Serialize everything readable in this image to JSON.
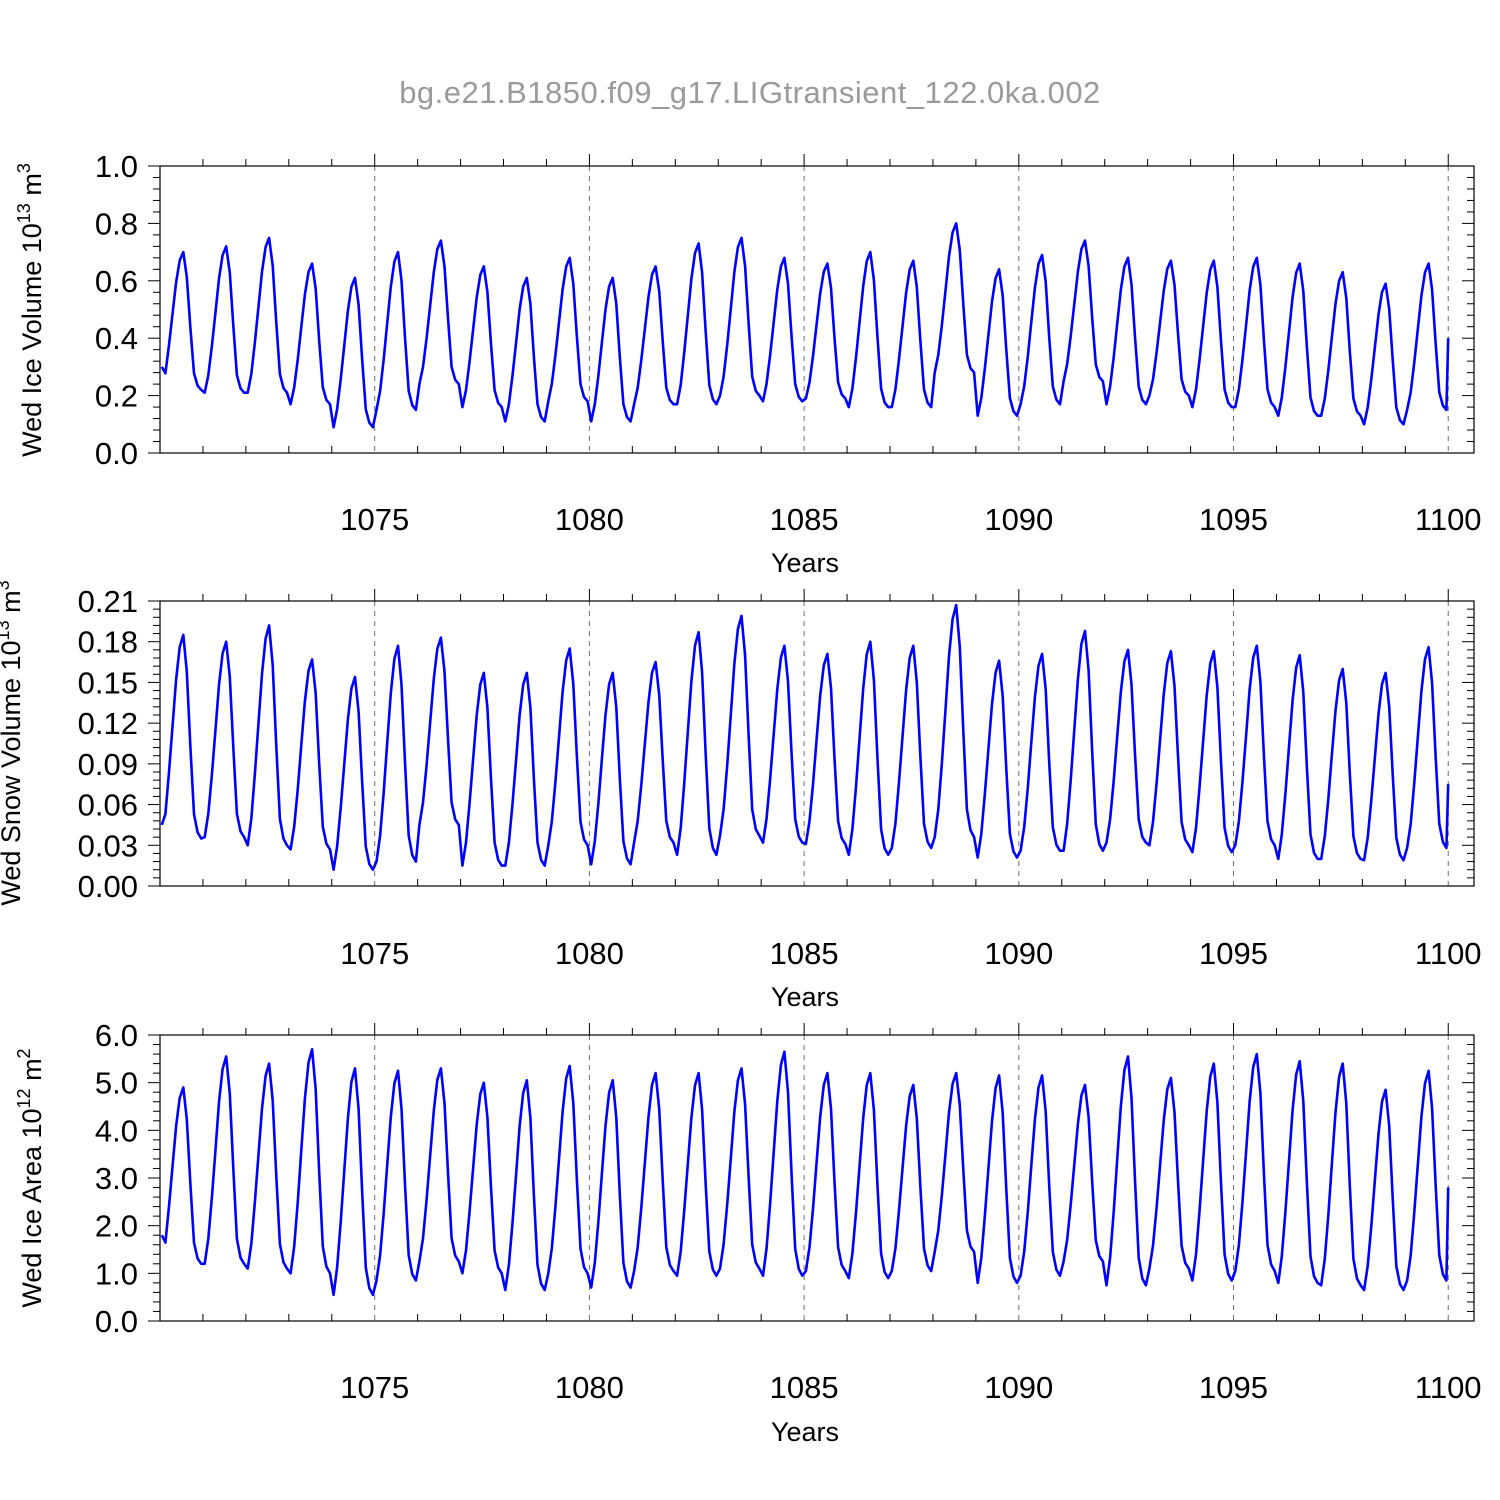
{
  "title": "bg.e21.B1850.f09_g17.LIGtransient_122.0ka.002",
  "chart_data": [
    {
      "type": "line",
      "ylabel_main": "Wed Ice Volume 10",
      "ylabel_exp": "13",
      "ylabel_unit": " m",
      "ylabel_unit_exp": "3",
      "xlabel": "Years",
      "xlim": [
        1070.0,
        1100.6
      ],
      "ylim": [
        0.0,
        1.0
      ],
      "x_ticks": [
        1075,
        1080,
        1085,
        1090,
        1095,
        1100
      ],
      "x_tick_labels": [
        "1075",
        "1080",
        "1085",
        "1090",
        "1095",
        "1100"
      ],
      "y_ticks": [
        0.0,
        0.2,
        0.4,
        0.6,
        0.8,
        1.0
      ],
      "y_tick_labels": [
        "0.0",
        "0.2",
        "0.4",
        "0.6",
        "0.8",
        "1.0"
      ],
      "y_minor_step": 0.04,
      "series": [
        {
          "name": "Wed Ice Volume",
          "color": "#0000ff",
          "cycle_mins": [
            0.22,
            0.21,
            0.21,
            0.17,
            0.09,
            0.15,
            0.24,
            0.16,
            0.11,
            0.18,
            0.11,
            0.17,
            0.17,
            0.2,
            0.18,
            0.19,
            0.16,
            0.16,
            0.28,
            0.13,
            0.17,
            0.25,
            0.17,
            0.2,
            0.16,
            0.16,
            0.13,
            0.13,
            0.1,
            0.15
          ],
          "cycle_maxs": [
            0.7,
            0.72,
            0.75,
            0.66,
            0.61,
            0.7,
            0.74,
            0.65,
            0.61,
            0.68,
            0.61,
            0.65,
            0.73,
            0.75,
            0.68,
            0.66,
            0.7,
            0.67,
            0.8,
            0.64,
            0.69,
            0.74,
            0.68,
            0.67,
            0.67,
            0.68,
            0.66,
            0.63,
            0.59,
            0.66
          ],
          "start": 0.3,
          "end": 0.4
        }
      ]
    },
    {
      "type": "line",
      "ylabel_main": "Wed Snow Volume 10",
      "ylabel_exp": "13",
      "ylabel_unit": " m",
      "ylabel_unit_exp": "3",
      "xlabel": "Years",
      "xlim": [
        1070.0,
        1100.6
      ],
      "ylim": [
        0.0,
        0.21
      ],
      "x_ticks": [
        1075,
        1080,
        1085,
        1090,
        1095,
        1100
      ],
      "x_tick_labels": [
        "1075",
        "1080",
        "1085",
        "1090",
        "1095",
        "1100"
      ],
      "y_ticks": [
        0.0,
        0.03,
        0.06,
        0.09,
        0.12,
        0.15,
        0.18,
        0.21
      ],
      "y_tick_labels": [
        "0.00",
        "0.03",
        "0.06",
        "0.09",
        "0.12",
        "0.15",
        "0.18",
        "0.21"
      ],
      "y_minor_step": 0.006,
      "series": [
        {
          "name": "Wed Snow Volume",
          "color": "#0000ff",
          "cycle_mins": [
            0.035,
            0.036,
            0.03,
            0.027,
            0.012,
            0.018,
            0.045,
            0.015,
            0.015,
            0.03,
            0.016,
            0.032,
            0.023,
            0.037,
            0.032,
            0.031,
            0.023,
            0.028,
            0.036,
            0.021,
            0.026,
            0.026,
            0.032,
            0.03,
            0.025,
            0.03,
            0.02,
            0.02,
            0.019,
            0.028
          ],
          "cycle_maxs": [
            0.185,
            0.18,
            0.192,
            0.167,
            0.154,
            0.177,
            0.183,
            0.157,
            0.157,
            0.175,
            0.157,
            0.165,
            0.187,
            0.199,
            0.177,
            0.171,
            0.18,
            0.177,
            0.207,
            0.166,
            0.171,
            0.188,
            0.174,
            0.173,
            0.173,
            0.177,
            0.17,
            0.16,
            0.157,
            0.176
          ],
          "start": 0.045,
          "end": 0.075
        }
      ]
    },
    {
      "type": "line",
      "ylabel_main": "Wed Ice Area 10",
      "ylabel_exp": "12",
      "ylabel_unit": " m",
      "ylabel_unit_exp": "2",
      "xlabel": "Years",
      "xlim": [
        1070.0,
        1100.6
      ],
      "ylim": [
        0.0,
        6.0
      ],
      "x_ticks": [
        1075,
        1080,
        1085,
        1090,
        1095,
        1100
      ],
      "x_tick_labels": [
        "1075",
        "1080",
        "1085",
        "1090",
        "1095",
        "1100"
      ],
      "y_ticks": [
        0.0,
        1.0,
        2.0,
        3.0,
        4.0,
        5.0,
        6.0
      ],
      "y_tick_labels": [
        "0.0",
        "1.0",
        "2.0",
        "3.0",
        "4.0",
        "5.0",
        "6.0"
      ],
      "y_minor_step": 0.2,
      "series": [
        {
          "name": "Wed Ice Area",
          "color": "#0000ff",
          "cycle_mins": [
            1.2,
            1.2,
            1.1,
            1.0,
            0.55,
            0.85,
            1.25,
            1.0,
            0.65,
            1.0,
            0.7,
            1.05,
            0.95,
            1.1,
            0.95,
            1.05,
            0.9,
            1.05,
            1.45,
            0.8,
            0.95,
            1.25,
            0.75,
            1.1,
            0.85,
            1.05,
            0.8,
            0.75,
            0.65,
            0.85
          ],
          "cycle_maxs": [
            4.9,
            5.55,
            5.4,
            5.7,
            5.3,
            5.25,
            5.3,
            5.0,
            5.05,
            5.35,
            5.05,
            5.2,
            5.2,
            5.3,
            5.65,
            5.2,
            5.2,
            4.95,
            5.2,
            5.15,
            5.15,
            4.95,
            5.55,
            5.1,
            5.4,
            5.6,
            5.45,
            5.4,
            4.85,
            5.25
          ],
          "start": 1.8,
          "end": 2.8
        }
      ]
    }
  ]
}
